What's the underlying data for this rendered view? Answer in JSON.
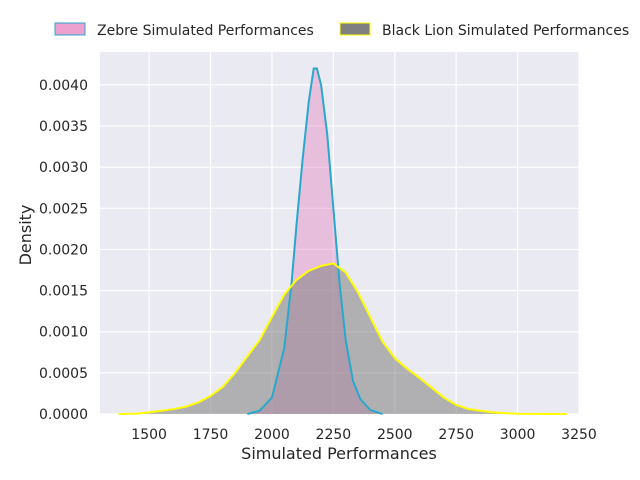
{
  "chart_data": {
    "type": "area",
    "title": "",
    "xlabel": "Simulated Performances",
    "ylabel": "Density",
    "xlim": [
      1300,
      3250
    ],
    "ylim": [
      0,
      0.0044
    ],
    "xticks": [
      1500,
      1750,
      2000,
      2250,
      2500,
      2750,
      3000,
      3250
    ],
    "yticks": [
      0.0,
      0.0005,
      0.001,
      0.0015,
      0.002,
      0.0025,
      0.003,
      0.0035,
      0.004
    ],
    "xtick_labels": [
      "1500",
      "1750",
      "2000",
      "2250",
      "2500",
      "2750",
      "3000",
      "3250"
    ],
    "ytick_labels": [
      "0.0000",
      "0.0005",
      "0.0010",
      "0.0015",
      "0.0020",
      "0.0025",
      "0.0030",
      "0.0035",
      "0.0040"
    ],
    "grid": true,
    "legend_position": "top",
    "series": [
      {
        "name": "Zebre Simulated Performances",
        "fill": "#e78ac3",
        "line": "#28a8cc",
        "x": [
          1900,
          1950,
          2000,
          2050,
          2080,
          2100,
          2125,
          2150,
          2170,
          2183,
          2200,
          2225,
          2250,
          2275,
          2300,
          2330,
          2360,
          2400,
          2440,
          2450
        ],
        "y": [
          0.0,
          4e-05,
          0.0002,
          0.0008,
          0.0016,
          0.0023,
          0.0031,
          0.0038,
          0.0042,
          0.0042,
          0.004,
          0.0034,
          0.0025,
          0.0016,
          0.0009,
          0.0004,
          0.00018,
          5e-05,
          1e-05,
          0.0
        ]
      },
      {
        "name": "Black Lion Simulated Performances",
        "fill": "#808080",
        "line": "#ffff00",
        "x": [
          1375,
          1450,
          1500,
          1550,
          1600,
          1650,
          1700,
          1750,
          1800,
          1850,
          1900,
          1950,
          2000,
          2050,
          2100,
          2150,
          2200,
          2250,
          2300,
          2350,
          2400,
          2450,
          2500,
          2550,
          2600,
          2650,
          2700,
          2750,
          2800,
          2850,
          2900,
          2950,
          3000,
          3100,
          3200
        ],
        "y": [
          0.0,
          5e-06,
          2e-05,
          4e-05,
          6e-05,
          9e-05,
          0.00014,
          0.00022,
          0.00033,
          0.0005,
          0.0007,
          0.0009,
          0.00118,
          0.00145,
          0.00163,
          0.00174,
          0.0018,
          0.00183,
          0.00172,
          0.00148,
          0.00118,
          0.00088,
          0.00068,
          0.00055,
          0.00044,
          0.00032,
          0.0002,
          0.00011,
          6e-05,
          4e-05,
          2e-05,
          1e-05,
          3e-06,
          1e-06,
          0.0
        ]
      }
    ]
  }
}
